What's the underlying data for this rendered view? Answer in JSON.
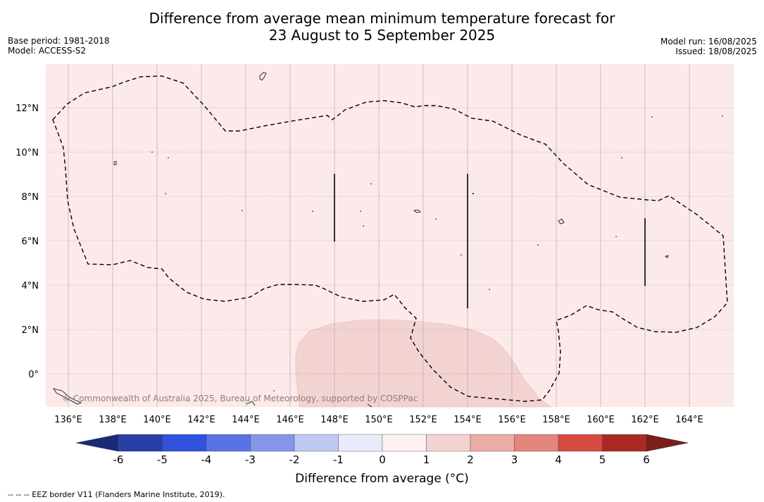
{
  "header": {
    "title_line1": "Difference from average mean minimum temperature forecast for",
    "title_line2": "23 August to 5 September 2025",
    "base_period": "Base period: 1981-2018",
    "model": "Model: ACCESS-S2",
    "model_run": "Model run: 16/08/2025",
    "issued": "Issued: 18/08/2025"
  },
  "map": {
    "lon_labels": [
      "136°E",
      "138°E",
      "140°E",
      "142°E",
      "144°E",
      "146°E",
      "148°E",
      "150°E",
      "152°E",
      "154°E",
      "156°E",
      "158°E",
      "160°E",
      "162°E",
      "164°E"
    ],
    "lat_labels": [
      "12°N",
      "10°N",
      "8°N",
      "6°N",
      "4°N",
      "2°N",
      "0°"
    ],
    "copyright": "© Commonwealth of Australia 2025, Bureau of Meteorology, supported by COSPPac",
    "background_color": "#fbeae9",
    "anomaly_patch_color": "#f3d3d2"
  },
  "colorbar": {
    "ticks": [
      "-6",
      "-5",
      "-4",
      "-3",
      "-2",
      "-1",
      "0",
      "1",
      "2",
      "3",
      "4",
      "5",
      "6"
    ],
    "colors": [
      "#2a3fa6",
      "#3152de",
      "#5a73e4",
      "#8596e9",
      "#c0c8f4",
      "#e8ebfa",
      "#fdf0ef",
      "#f3d3d2",
      "#ebaca7",
      "#e3857d",
      "#d74a40",
      "#a92a24"
    ],
    "low_extend_color": "#1b2a78",
    "high_extend_color": "#7a1f1a",
    "label": "Difference from average (°C)"
  },
  "footnote": "--  --  -- EEZ border V11 (Flanders Marine Institute, 2019)."
}
